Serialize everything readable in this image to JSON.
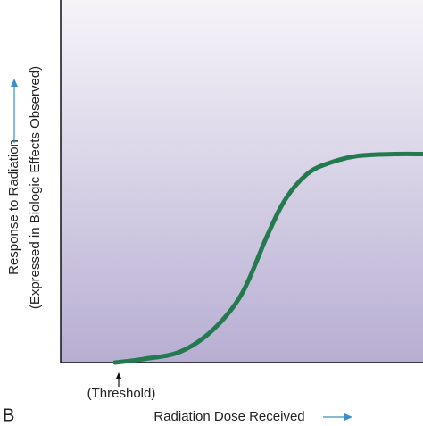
{
  "chart_data": {
    "type": "line",
    "ylabel": [
      "Response to Radiation",
      "(Expressed in Biologic Effects Observed)"
    ],
    "xlabel": "Radiation Dose Received",
    "annotation": "(Threshold)",
    "panel_label": "B",
    "x": [
      15,
      23,
      33,
      42,
      50,
      57,
      62,
      68,
      74,
      82,
      92,
      100
    ],
    "series": [
      {
        "color": "#237a4f",
        "values": [
          0,
          1,
          3,
          9,
          19,
          35,
          45,
          52,
          55,
          57,
          57.5,
          57.5
        ]
      }
    ],
    "xlim": [
      0,
      100
    ],
    "ylim": [
      0,
      100
    ]
  }
}
